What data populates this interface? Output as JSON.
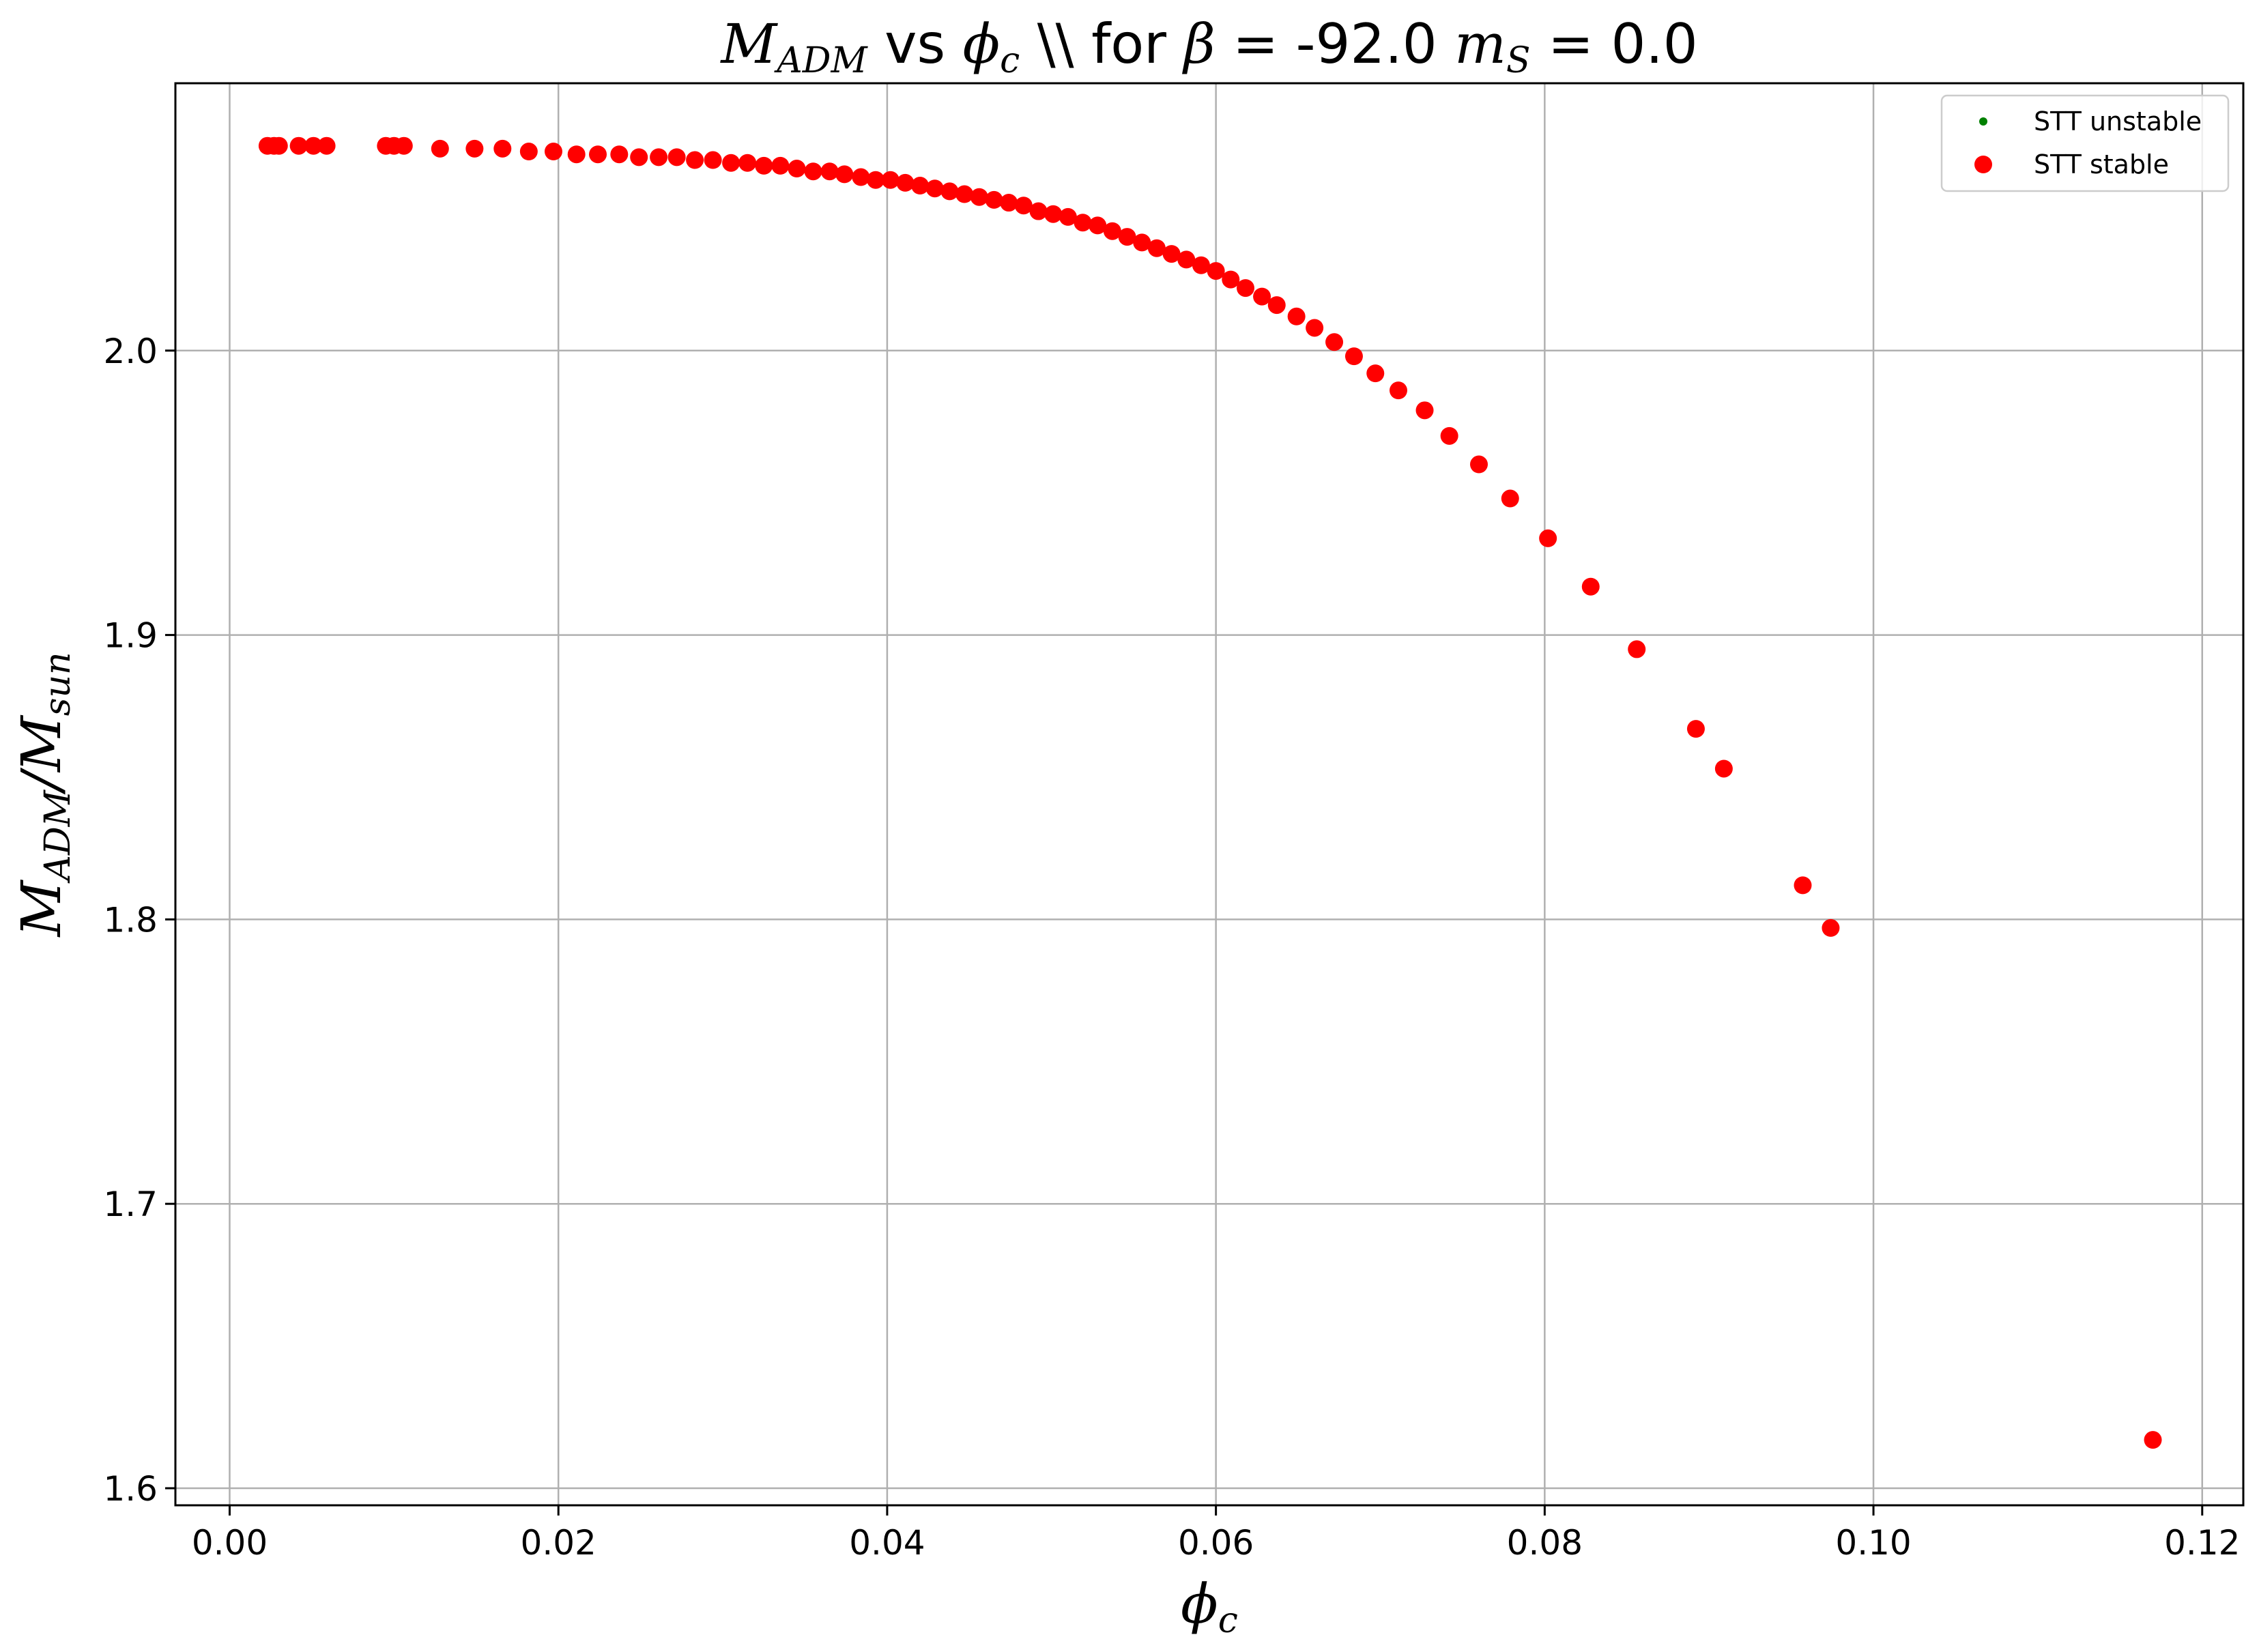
{
  "chart_data": {
    "type": "scatter",
    "title": {
      "part1_var": "M",
      "part1_sub": "ADM",
      "part2": " vs ",
      "part3_var": "ϕ",
      "part3_sub": "c",
      "part4": " \\\\ for ",
      "part5_var": "β",
      "part6": " = -92.0 ",
      "part7_var": "m",
      "part7_sub": "S",
      "part8": " = 0.0"
    },
    "xlabel": {
      "var": "ϕ",
      "sub": "c"
    },
    "ylabel": {
      "var1": "M",
      "sub1": "ADM",
      "slash": "/",
      "var2": "M",
      "sub2": "sun"
    },
    "xlim": [
      -0.0033,
      0.1225
    ],
    "ylim": [
      1.594,
      2.094
    ],
    "xticks": [
      0.0,
      0.02,
      0.04,
      0.06,
      0.08,
      0.1,
      0.12
    ],
    "xtick_labels": [
      "0.00",
      "0.02",
      "0.04",
      "0.06",
      "0.08",
      "0.10",
      "0.12"
    ],
    "yticks": [
      1.6,
      1.7,
      1.8,
      1.9,
      2.0
    ],
    "ytick_labels": [
      "1.6",
      "1.7",
      "1.8",
      "1.9",
      "2.0"
    ],
    "grid": true,
    "legend_position": "top-right",
    "series": [
      {
        "name": "STT unstable",
        "color": "#008000",
        "marker": "small-dot",
        "points": []
      },
      {
        "name": "STT stable",
        "color": "#ff0000",
        "marker": "dot",
        "points": [
          [
            0.0023,
            2.072
          ],
          [
            0.0027,
            2.072
          ],
          [
            0.003,
            2.072
          ],
          [
            0.0042,
            2.072
          ],
          [
            0.0051,
            2.072
          ],
          [
            0.0059,
            2.072
          ],
          [
            0.0095,
            2.072
          ],
          [
            0.01,
            2.072
          ],
          [
            0.0106,
            2.072
          ],
          [
            0.0128,
            2.071
          ],
          [
            0.0149,
            2.071
          ],
          [
            0.0166,
            2.071
          ],
          [
            0.0182,
            2.07
          ],
          [
            0.0197,
            2.07
          ],
          [
            0.0211,
            2.069
          ],
          [
            0.0224,
            2.069
          ],
          [
            0.0237,
            2.069
          ],
          [
            0.0249,
            2.068
          ],
          [
            0.0261,
            2.068
          ],
          [
            0.0272,
            2.068
          ],
          [
            0.0283,
            2.067
          ],
          [
            0.0294,
            2.067
          ],
          [
            0.0305,
            2.066
          ],
          [
            0.0315,
            2.066
          ],
          [
            0.0325,
            2.065
          ],
          [
            0.0335,
            2.065
          ],
          [
            0.0345,
            2.064
          ],
          [
            0.0355,
            2.063
          ],
          [
            0.0365,
            2.063
          ],
          [
            0.0374,
            2.062
          ],
          [
            0.0384,
            2.061
          ],
          [
            0.0393,
            2.06
          ],
          [
            0.0402,
            2.06
          ],
          [
            0.0411,
            2.059
          ],
          [
            0.042,
            2.058
          ],
          [
            0.0429,
            2.057
          ],
          [
            0.0438,
            2.056
          ],
          [
            0.0447,
            2.055
          ],
          [
            0.0456,
            2.054
          ],
          [
            0.0465,
            2.053
          ],
          [
            0.0474,
            2.052
          ],
          [
            0.0483,
            2.051
          ],
          [
            0.0492,
            2.049
          ],
          [
            0.0501,
            2.048
          ],
          [
            0.051,
            2.047
          ],
          [
            0.0519,
            2.045
          ],
          [
            0.0528,
            2.044
          ],
          [
            0.0537,
            2.042
          ],
          [
            0.0546,
            2.04
          ],
          [
            0.0555,
            2.038
          ],
          [
            0.0564,
            2.036
          ],
          [
            0.0573,
            2.034
          ],
          [
            0.0582,
            2.032
          ],
          [
            0.0591,
            2.03
          ],
          [
            0.06,
            2.028
          ],
          [
            0.0609,
            2.025
          ],
          [
            0.0618,
            2.022
          ],
          [
            0.0628,
            2.019
          ],
          [
            0.0637,
            2.016
          ],
          [
            0.0649,
            2.012
          ],
          [
            0.066,
            2.008
          ],
          [
            0.0672,
            2.003
          ],
          [
            0.0684,
            1.998
          ],
          [
            0.0697,
            1.992
          ],
          [
            0.0711,
            1.986
          ],
          [
            0.0727,
            1.979
          ],
          [
            0.0742,
            1.97
          ],
          [
            0.076,
            1.96
          ],
          [
            0.0779,
            1.948
          ],
          [
            0.0802,
            1.934
          ],
          [
            0.0828,
            1.917
          ],
          [
            0.0856,
            1.895
          ],
          [
            0.0892,
            1.867
          ],
          [
            0.0909,
            1.853
          ],
          [
            0.0957,
            1.812
          ],
          [
            0.0974,
            1.797
          ],
          [
            0.117,
            1.617
          ]
        ]
      }
    ]
  }
}
